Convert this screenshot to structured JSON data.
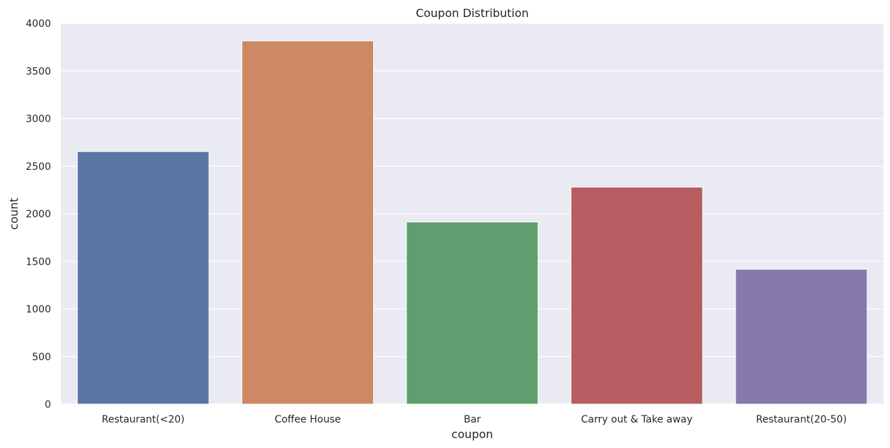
{
  "chart_data": {
    "type": "bar",
    "title": "Coupon Distribution",
    "xlabel": "coupon",
    "ylabel": "count",
    "categories": [
      "Restaurant(<20)",
      "Coffee House",
      "Bar",
      "Carry out & Take away",
      "Restaurant(20-50)"
    ],
    "values": [
      2653,
      3816,
      1913,
      2280,
      1417
    ],
    "ylim": [
      0,
      4000
    ],
    "yticks": [
      0,
      500,
      1000,
      1500,
      2000,
      2500,
      3000,
      3500,
      4000
    ],
    "ytick_labels": [
      "0",
      "500",
      "1000",
      "1500",
      "2000",
      "2500",
      "3000",
      "3500",
      "4000"
    ],
    "grid": true,
    "legend": "none",
    "colors": [
      "#5975a4",
      "#cc8963",
      "#5f9e6e",
      "#b55d60",
      "#857aab"
    ],
    "background_color": "#eaeaf2",
    "grid_color": "#ffffff"
  }
}
